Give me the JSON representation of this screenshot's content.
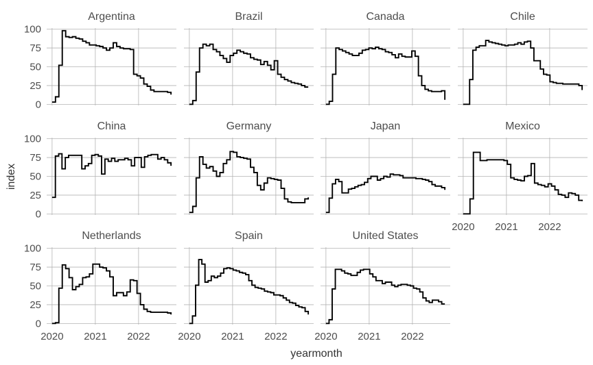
{
  "chart_data": {
    "type": "line",
    "xlabel": "yearmonth",
    "ylabel": "index",
    "ylim": [
      0,
      100
    ],
    "y_ticks": [
      "0",
      "25",
      "50",
      "75",
      "100"
    ],
    "x_ticks": [
      "2020",
      "2021",
      "2022"
    ],
    "x_range": [
      "2020-01",
      "2022-10"
    ],
    "grid": true,
    "facets": [
      {
        "name": "Argentina",
        "values": [
          3,
          10,
          52,
          98,
          90,
          89,
          90,
          88,
          87,
          84,
          82,
          79,
          79,
          78,
          77,
          75,
          72,
          75,
          82,
          77,
          75,
          74,
          74,
          73,
          40,
          38,
          35,
          27,
          24,
          19,
          17,
          17,
          17,
          17,
          16,
          13
        ]
      },
      {
        "name": "Brazil",
        "values": [
          0,
          5,
          43,
          75,
          80,
          78,
          80,
          73,
          70,
          65,
          61,
          56,
          65,
          68,
          72,
          70,
          68,
          67,
          62,
          60,
          59,
          53,
          57,
          52,
          46,
          58,
          40,
          36,
          33,
          31,
          29,
          28,
          27,
          25,
          23,
          23
        ]
      },
      {
        "name": "Canada",
        "values": [
          0,
          4,
          40,
          75,
          73,
          71,
          69,
          67,
          65,
          65,
          68,
          72,
          73,
          75,
          74,
          76,
          74,
          73,
          70,
          69,
          66,
          62,
          67,
          64,
          63,
          63,
          71,
          64,
          38,
          25,
          20,
          18,
          17,
          17,
          17,
          18,
          6
        ]
      },
      {
        "name": "Chile",
        "values": [
          0,
          0,
          33,
          72,
          76,
          78,
          78,
          85,
          83,
          82,
          81,
          80,
          79,
          78,
          79,
          79,
          80,
          82,
          80,
          83,
          84,
          75,
          58,
          58,
          47,
          40,
          39,
          30,
          29,
          28,
          28,
          27,
          27,
          27,
          27,
          27,
          25,
          19
        ]
      },
      {
        "name": "China",
        "values": [
          22,
          77,
          80,
          60,
          75,
          78,
          78,
          78,
          78,
          60,
          64,
          67,
          78,
          79,
          77,
          53,
          73,
          70,
          74,
          70,
          72,
          72,
          74,
          72,
          64,
          75,
          75,
          62,
          76,
          78,
          79,
          79,
          73,
          75,
          72,
          68,
          64
        ]
      },
      {
        "name": "Germany",
        "values": [
          2,
          10,
          48,
          76,
          66,
          61,
          63,
          57,
          50,
          55,
          67,
          72,
          83,
          82,
          76,
          75,
          74,
          73,
          62,
          55,
          38,
          32,
          41,
          48,
          47,
          46,
          45,
          34,
          20,
          16,
          15,
          15,
          15,
          15,
          20,
          22
        ]
      },
      {
        "name": "Japan",
        "values": [
          2,
          21,
          40,
          46,
          43,
          28,
          28,
          33,
          34,
          36,
          38,
          39,
          42,
          47,
          50,
          50,
          45,
          47,
          50,
          49,
          53,
          52,
          52,
          51,
          48,
          48,
          48,
          48,
          47,
          47,
          46,
          45,
          43,
          39,
          37,
          37,
          35,
          32
        ]
      },
      {
        "name": "Mexico",
        "values": [
          0,
          0,
          20,
          82,
          82,
          71,
          71,
          72,
          72,
          72,
          72,
          72,
          71,
          66,
          48,
          46,
          45,
          44,
          50,
          51,
          67,
          41,
          39,
          38,
          36,
          40,
          37,
          32,
          26,
          25,
          22,
          28,
          27,
          25,
          18,
          17
        ]
      },
      {
        "name": "Netherlands",
        "values": [
          0,
          1,
          47,
          78,
          73,
          61,
          45,
          49,
          52,
          61,
          62,
          66,
          79,
          79,
          75,
          74,
          70,
          62,
          37,
          41,
          41,
          37,
          42,
          58,
          57,
          40,
          25,
          19,
          16,
          15,
          15,
          15,
          15,
          15,
          14,
          12
        ]
      },
      {
        "name": "Spain",
        "values": [
          0,
          10,
          51,
          85,
          79,
          55,
          57,
          63,
          61,
          63,
          67,
          73,
          74,
          73,
          71,
          70,
          68,
          67,
          65,
          57,
          51,
          48,
          47,
          46,
          43,
          42,
          41,
          38,
          38,
          37,
          34,
          31,
          28,
          27,
          24,
          22,
          21,
          16,
          12
        ]
      },
      {
        "name": "United States",
        "values": [
          0,
          5,
          46,
          72,
          72,
          70,
          67,
          66,
          64,
          64,
          68,
          71,
          72,
          72,
          66,
          62,
          57,
          57,
          53,
          55,
          55,
          51,
          49,
          51,
          52,
          52,
          51,
          50,
          47,
          46,
          42,
          34,
          30,
          28,
          31,
          31,
          29,
          26,
          26
        ]
      }
    ]
  }
}
